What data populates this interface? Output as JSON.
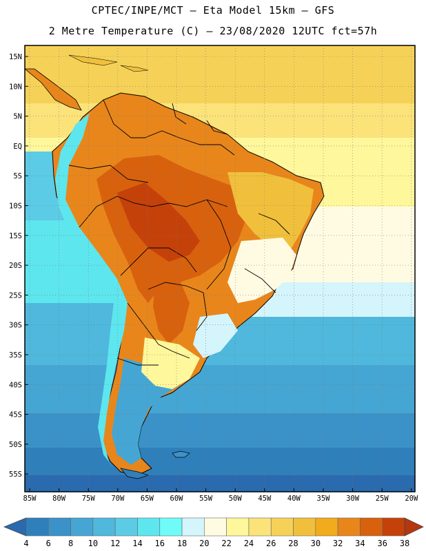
{
  "header": {
    "line1": "CPTEC/INPE/MCT –  Eta Model 15km – GFS",
    "line2": "2 Metre Temperature (C) – 23/08/2020 12UTC fct=57h"
  },
  "map": {
    "lat_labels": [
      "15N",
      "10N",
      "5N",
      "EQ",
      "5S",
      "10S",
      "15S",
      "20S",
      "25S",
      "30S",
      "35S",
      "40S",
      "45S",
      "50S",
      "55S"
    ],
    "lon_labels": [
      "85W",
      "80W",
      "75W",
      "70W",
      "65W",
      "60W",
      "55W",
      "50W",
      "45W",
      "40W",
      "35W",
      "30W",
      "25W",
      "20W"
    ]
  },
  "colorbar": {
    "ticks": [
      "4",
      "6",
      "8",
      "10",
      "12",
      "14",
      "16",
      "18",
      "20",
      "22",
      "24",
      "26",
      "28",
      "30",
      "32",
      "34",
      "36",
      "38"
    ],
    "colors": [
      "#2a6aae",
      "#2f7fbb",
      "#3a92c8",
      "#45a6d3",
      "#4fb8dc",
      "#5ccbe6",
      "#5ee6ee",
      "#70fbf9",
      "#d4f5fb",
      "#fffbe3",
      "#fff79b",
      "#fbe37a",
      "#f5d257",
      "#f0c03c",
      "#f2ab1d",
      "#e8861c",
      "#d8610e",
      "#c5410a",
      "#b5360f"
    ]
  }
}
